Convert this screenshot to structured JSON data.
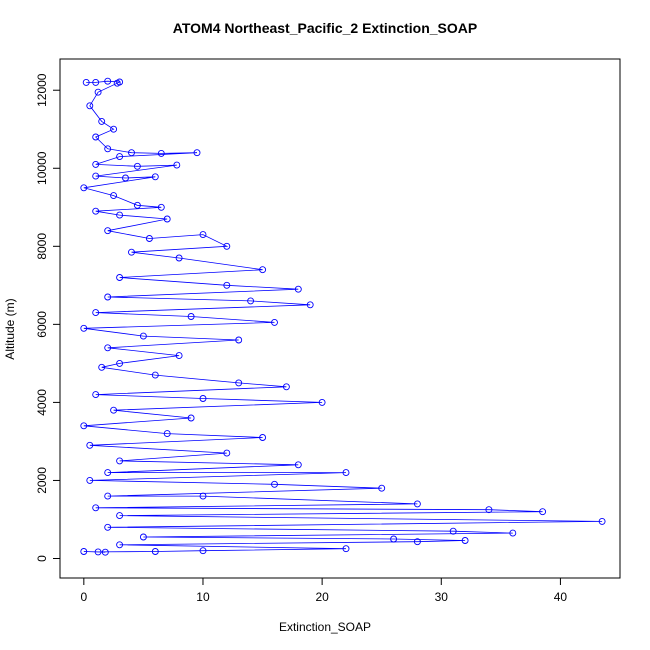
{
  "chart_data": {
    "type": "scatter",
    "title": "ATOM4 Northeast_Pacific_2 Extinction_SOAP",
    "xlabel": "Extinction_SOAP",
    "ylabel": "Altitude (m)",
    "xlim": [
      -2,
      45
    ],
    "ylim": [
      -500,
      12800
    ],
    "xticks": [
      0,
      10,
      20,
      30,
      40
    ],
    "yticks": [
      0,
      2000,
      4000,
      6000,
      8000,
      10000,
      12000
    ],
    "grid": false,
    "legend": "none",
    "series_color": "#0000ff",
    "series": [
      {
        "style": "points-and-lines",
        "points": [
          [
            0.2,
            12200
          ],
          [
            1.0,
            12200
          ],
          [
            2.0,
            12230
          ],
          [
            3.0,
            12210
          ],
          [
            2.8,
            12180
          ],
          [
            1.2,
            11950
          ],
          [
            0.5,
            11600
          ],
          [
            1.5,
            11200
          ],
          [
            2.5,
            11000
          ],
          [
            1.0,
            10800
          ],
          [
            2.0,
            10500
          ],
          [
            4.0,
            10400
          ],
          [
            6.5,
            10380
          ],
          [
            9.5,
            10400
          ],
          [
            3.0,
            10300
          ],
          [
            1.0,
            10100
          ],
          [
            4.5,
            10050
          ],
          [
            7.8,
            10080
          ],
          [
            1.0,
            9800
          ],
          [
            3.5,
            9750
          ],
          [
            6.0,
            9780
          ],
          [
            0.0,
            9500
          ],
          [
            2.5,
            9300
          ],
          [
            4.5,
            9050
          ],
          [
            6.5,
            9000
          ],
          [
            1.0,
            8900
          ],
          [
            3.0,
            8800
          ],
          [
            7.0,
            8700
          ],
          [
            2.0,
            8400
          ],
          [
            5.5,
            8200
          ],
          [
            10.0,
            8300
          ],
          [
            12.0,
            8000
          ],
          [
            4.0,
            7850
          ],
          [
            8.0,
            7700
          ],
          [
            15.0,
            7400
          ],
          [
            3.0,
            7200
          ],
          [
            12.0,
            7000
          ],
          [
            18.0,
            6900
          ],
          [
            2.0,
            6700
          ],
          [
            14.0,
            6600
          ],
          [
            19.0,
            6500
          ],
          [
            1.0,
            6300
          ],
          [
            9.0,
            6200
          ],
          [
            16.0,
            6050
          ],
          [
            0.0,
            5900
          ],
          [
            5.0,
            5700
          ],
          [
            13.0,
            5600
          ],
          [
            2.0,
            5400
          ],
          [
            8.0,
            5200
          ],
          [
            3.0,
            5000
          ],
          [
            1.5,
            4900
          ],
          [
            6.0,
            4700
          ],
          [
            13.0,
            4500
          ],
          [
            17.0,
            4400
          ],
          [
            1.0,
            4200
          ],
          [
            10.0,
            4100
          ],
          [
            20.0,
            4000
          ],
          [
            2.5,
            3800
          ],
          [
            9.0,
            3600
          ],
          [
            0.0,
            3400
          ],
          [
            7.0,
            3200
          ],
          [
            15.0,
            3100
          ],
          [
            0.5,
            2900
          ],
          [
            12.0,
            2700
          ],
          [
            3.0,
            2500
          ],
          [
            18.0,
            2400
          ],
          [
            2.0,
            2200
          ],
          [
            22.0,
            2200
          ],
          [
            0.5,
            2000
          ],
          [
            16.0,
            1900
          ],
          [
            25.0,
            1800
          ],
          [
            2.0,
            1600
          ],
          [
            10.0,
            1600
          ],
          [
            28.0,
            1400
          ],
          [
            1.0,
            1300
          ],
          [
            34.0,
            1250
          ],
          [
            38.5,
            1200
          ],
          [
            3.0,
            1100
          ],
          [
            43.5,
            950
          ],
          [
            2.0,
            800
          ],
          [
            31.0,
            700
          ],
          [
            36.0,
            650
          ],
          [
            5.0,
            550
          ],
          [
            26.0,
            500
          ],
          [
            32.0,
            460
          ],
          [
            28.0,
            430
          ],
          [
            3.0,
            350
          ],
          [
            22.0,
            250
          ],
          [
            10.0,
            200
          ],
          [
            6.0,
            180
          ],
          [
            1.2,
            170
          ],
          [
            0.0,
            180
          ],
          [
            1.8,
            160
          ]
        ]
      }
    ]
  }
}
